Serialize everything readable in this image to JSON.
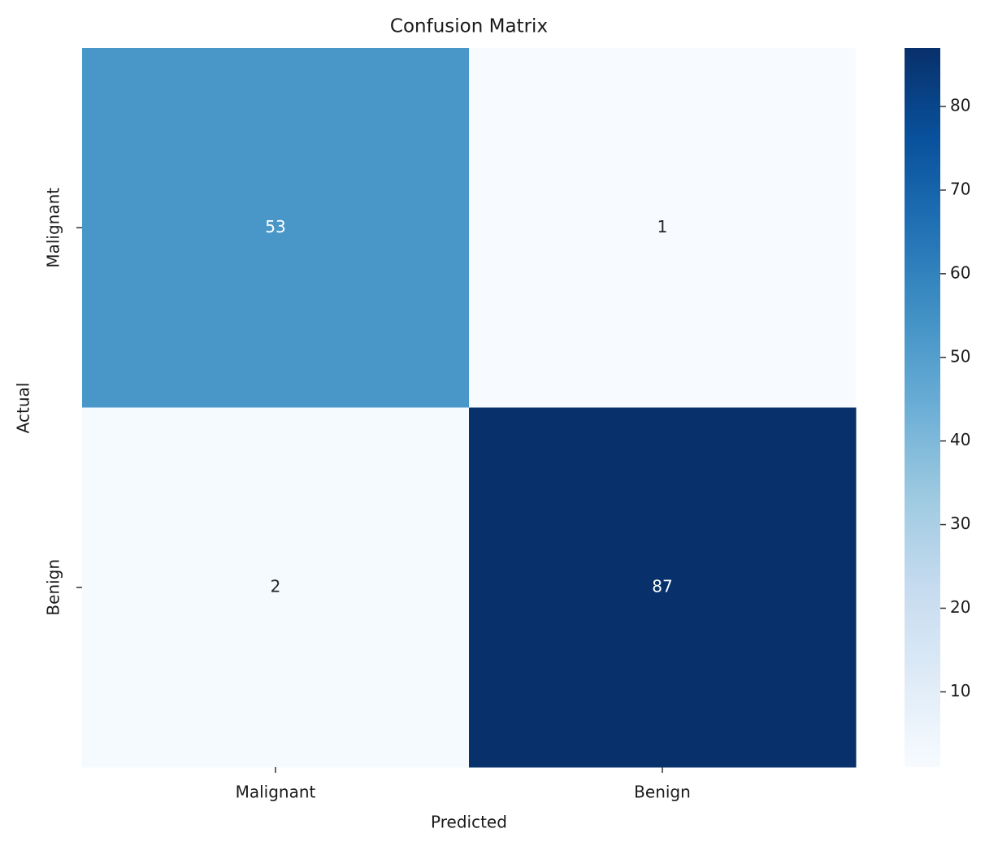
{
  "chart_data": {
    "type": "heatmap",
    "title": "Confusion Matrix",
    "xlabel": "Predicted",
    "ylabel": "Actual",
    "x_categories": [
      "Malignant",
      "Benign"
    ],
    "y_categories": [
      "Malignant",
      "Benign"
    ],
    "values": [
      [
        53,
        1
      ],
      [
        2,
        87
      ]
    ],
    "colorscale": [
      "#f7fbff",
      "#deebf7",
      "#c6dbef",
      "#9ecae1",
      "#6baed6",
      "#4292c6",
      "#2171b5",
      "#08519c",
      "#08306b"
    ],
    "zlim": [
      1,
      87
    ],
    "zticks": [
      10,
      20,
      30,
      40,
      50,
      60,
      70,
      80
    ]
  }
}
